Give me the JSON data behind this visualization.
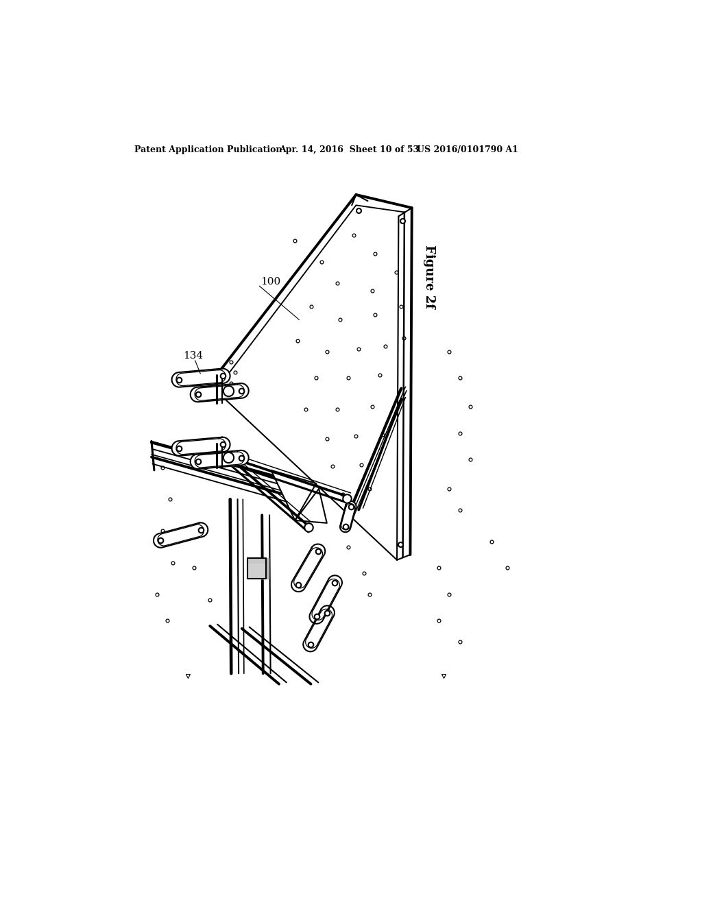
{
  "bg_color": "#ffffff",
  "header_left": "Patent Application Publication",
  "header_mid": "Apr. 14, 2016  Sheet 10 of 53",
  "header_right": "US 2016/0101790 A1",
  "figure_label": "Figure 2f",
  "label_100": "100",
  "label_134": "134",
  "lc": "#000000",
  "lw": 1.5,
  "tlw": 2.8
}
